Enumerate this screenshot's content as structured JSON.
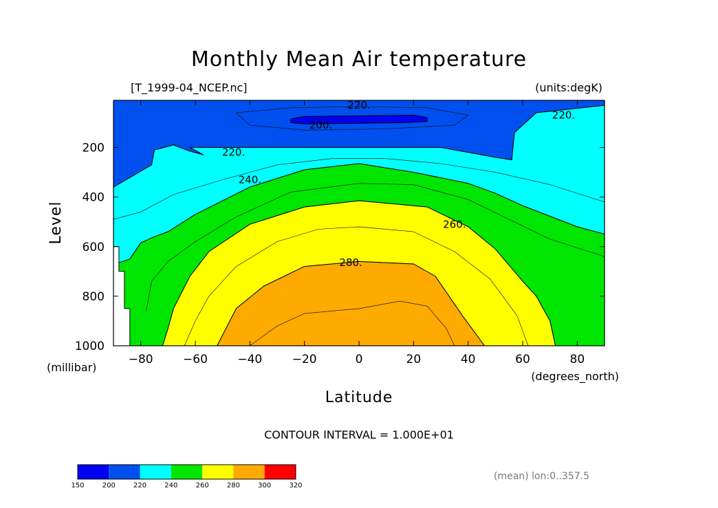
{
  "chart_data": {
    "type": "contour",
    "title": "Monthly Mean Air temperature",
    "source_label": "[T_1999-04_NCEP.nc]",
    "units_label": "(units:degK)",
    "xlabel": "Latitude",
    "x_units": "(degrees_north)",
    "ylabel": "Level",
    "y_units": "(millibar)",
    "xlim": [
      -90,
      90
    ],
    "ylim": [
      1000,
      10
    ],
    "x_ticks": [
      "-80",
      "-60",
      "-40",
      "-20",
      "0",
      "20",
      "40",
      "60",
      "80"
    ],
    "x_tick_values": [
      -80,
      -60,
      -40,
      -20,
      0,
      20,
      40,
      60,
      80
    ],
    "y_ticks": [
      "200",
      "400",
      "600",
      "800",
      "1000"
    ],
    "y_tick_values": [
      200,
      400,
      600,
      800,
      1000
    ],
    "contour_interval_label": "CONTOUR INTERVAL = 1.000E+01",
    "footnote": "(mean) lon:0..357.5",
    "contour_labels": [
      {
        "text": "220.",
        "lat": 0,
        "lev": 30
      },
      {
        "text": "200.",
        "lat": -14,
        "lev": 110
      },
      {
        "text": "220.",
        "lat": 75,
        "lev": 70
      },
      {
        "text": "220.",
        "lat": -46,
        "lev": 220
      },
      {
        "text": "240.",
        "lat": -40,
        "lev": 330
      },
      {
        "text": "260.",
        "lat": 35,
        "lev": 510
      },
      {
        "text": "280.",
        "lat": -3,
        "lev": 665
      }
    ],
    "filled_levels": [
      {
        "range": [
          190,
          200
        ],
        "color": "#0000f0",
        "region": [
          [
            -25,
            85
          ],
          [
            -20,
            75
          ],
          [
            20,
            70
          ],
          [
            25,
            80
          ],
          [
            25,
            95
          ],
          [
            15,
            100
          ],
          [
            -20,
            105
          ],
          [
            -25,
            100
          ]
        ]
      },
      {
        "range": [
          200,
          220
        ],
        "color": "#0050f0",
        "region": [
          [
            -90,
            10
          ],
          [
            90,
            10
          ],
          [
            90,
            30
          ],
          [
            65,
            60
          ],
          [
            57,
            140
          ],
          [
            56,
            250
          ],
          [
            50,
            240
          ],
          [
            30,
            200
          ],
          [
            -62,
            200
          ],
          [
            -57,
            230
          ],
          [
            -62,
            215
          ],
          [
            -68,
            190
          ],
          [
            -75,
            210
          ],
          [
            -76,
            270
          ],
          [
            -90,
            360
          ]
        ]
      },
      {
        "range": [
          220,
          240
        ],
        "color": "#00ffff",
        "region": [
          [
            -90,
            360
          ],
          [
            -76,
            270
          ],
          [
            -75,
            210
          ],
          [
            -68,
            190
          ],
          [
            -62,
            215
          ],
          [
            -57,
            230
          ],
          [
            -62,
            200
          ],
          [
            30,
            200
          ],
          [
            50,
            240
          ],
          [
            56,
            250
          ],
          [
            57,
            140
          ],
          [
            65,
            60
          ],
          [
            90,
            30
          ],
          [
            90,
            550
          ],
          [
            80,
            520
          ],
          [
            60,
            435
          ],
          [
            50,
            385
          ],
          [
            40,
            345
          ],
          [
            20,
            300
          ],
          [
            0,
            265
          ],
          [
            -20,
            290
          ],
          [
            -40,
            360
          ],
          [
            -60,
            470
          ],
          [
            -70,
            540
          ],
          [
            -75,
            560
          ],
          [
            -80,
            585
          ],
          [
            -84,
            650
          ],
          [
            -88,
            665
          ],
          [
            -88,
            600
          ],
          [
            -90,
            600
          ]
        ]
      },
      {
        "range": [
          240,
          260
        ],
        "color": "#00e600",
        "region": [
          [
            -88,
            700
          ],
          [
            -88,
            665
          ],
          [
            -84,
            650
          ],
          [
            -80,
            585
          ],
          [
            -75,
            560
          ],
          [
            -70,
            540
          ],
          [
            -60,
            470
          ],
          [
            -40,
            360
          ],
          [
            -20,
            290
          ],
          [
            0,
            265
          ],
          [
            20,
            300
          ],
          [
            40,
            345
          ],
          [
            50,
            385
          ],
          [
            60,
            435
          ],
          [
            80,
            520
          ],
          [
            90,
            550
          ],
          [
            90,
            1000
          ],
          [
            72,
            1000
          ],
          [
            70,
            900
          ],
          [
            65,
            800
          ],
          [
            60,
            740
          ],
          [
            50,
            610
          ],
          [
            40,
            520
          ],
          [
            25,
            440
          ],
          [
            0,
            415
          ],
          [
            -20,
            440
          ],
          [
            -40,
            510
          ],
          [
            -55,
            620
          ],
          [
            -62,
            720
          ],
          [
            -68,
            850
          ],
          [
            -70,
            930
          ],
          [
            -72,
            1000
          ],
          [
            -84,
            1000
          ],
          [
            -84,
            850
          ],
          [
            -86,
            850
          ],
          [
            -86,
            700
          ]
        ]
      },
      {
        "range": [
          260,
          280
        ],
        "color": "#ffff00",
        "region": [
          [
            -72,
            1000
          ],
          [
            -70,
            930
          ],
          [
            -68,
            850
          ],
          [
            -62,
            720
          ],
          [
            -55,
            620
          ],
          [
            -40,
            510
          ],
          [
            -20,
            440
          ],
          [
            0,
            415
          ],
          [
            25,
            440
          ],
          [
            40,
            520
          ],
          [
            50,
            610
          ],
          [
            60,
            740
          ],
          [
            65,
            800
          ],
          [
            70,
            900
          ],
          [
            72,
            1000
          ],
          [
            46,
            1000
          ],
          [
            38,
            880
          ],
          [
            28,
            720
          ],
          [
            20,
            670
          ],
          [
            0,
            660
          ],
          [
            -20,
            680
          ],
          [
            -35,
            760
          ],
          [
            -45,
            850
          ],
          [
            -52,
            1000
          ]
        ]
      },
      {
        "range": [
          280,
          290
        ],
        "color": "#ffaa00",
        "region": [
          [
            -52,
            1000
          ],
          [
            -45,
            850
          ],
          [
            -35,
            760
          ],
          [
            -20,
            680
          ],
          [
            0,
            660
          ],
          [
            20,
            670
          ],
          [
            28,
            720
          ],
          [
            38,
            880
          ],
          [
            46,
            1000
          ]
        ]
      }
    ],
    "contour_lines": [
      {
        "value": 210,
        "points": [
          [
            -45,
            60
          ],
          [
            -25,
            40
          ],
          [
            0,
            35
          ],
          [
            25,
            40
          ],
          [
            40,
            70
          ],
          [
            35,
            110
          ],
          [
            10,
            125
          ],
          [
            -20,
            130
          ],
          [
            -40,
            110
          ],
          [
            -45,
            60
          ]
        ]
      },
      {
        "value": 230,
        "points": [
          [
            -90,
            490
          ],
          [
            -80,
            460
          ],
          [
            -68,
            390
          ],
          [
            -50,
            330
          ],
          [
            -30,
            270
          ],
          [
            -10,
            245
          ],
          [
            10,
            245
          ],
          [
            30,
            265
          ],
          [
            50,
            300
          ],
          [
            70,
            350
          ],
          [
            90,
            420
          ]
        ]
      },
      {
        "value": 250,
        "points": [
          [
            -78,
            860
          ],
          [
            -76,
            740
          ],
          [
            -70,
            660
          ],
          [
            -60,
            580
          ],
          [
            -45,
            480
          ],
          [
            -25,
            380
          ],
          [
            0,
            345
          ],
          [
            20,
            350
          ],
          [
            40,
            410
          ],
          [
            55,
            490
          ],
          [
            70,
            570
          ],
          [
            90,
            640
          ]
        ]
      },
      {
        "value": 270,
        "points": [
          [
            -64,
            1000
          ],
          [
            -60,
            900
          ],
          [
            -55,
            800
          ],
          [
            -45,
            680
          ],
          [
            -30,
            580
          ],
          [
            -15,
            530
          ],
          [
            0,
            520
          ],
          [
            20,
            540
          ],
          [
            35,
            620
          ],
          [
            48,
            730
          ],
          [
            58,
            880
          ],
          [
            62,
            1000
          ]
        ]
      },
      {
        "value": 290,
        "points": [
          [
            -40,
            1000
          ],
          [
            -30,
            920
          ],
          [
            -20,
            870
          ],
          [
            0,
            850
          ],
          [
            15,
            820
          ],
          [
            25,
            840
          ],
          [
            32,
            930
          ],
          [
            35,
            1000
          ]
        ]
      }
    ],
    "colorbar": {
      "labels": [
        "150",
        "200",
        "220",
        "240",
        "260",
        "280",
        "300",
        "320"
      ],
      "colors": [
        "#0000f0",
        "#0050f0",
        "#00ffff",
        "#00e600",
        "#ffff00",
        "#ffaa00",
        "#ff0000"
      ]
    }
  }
}
